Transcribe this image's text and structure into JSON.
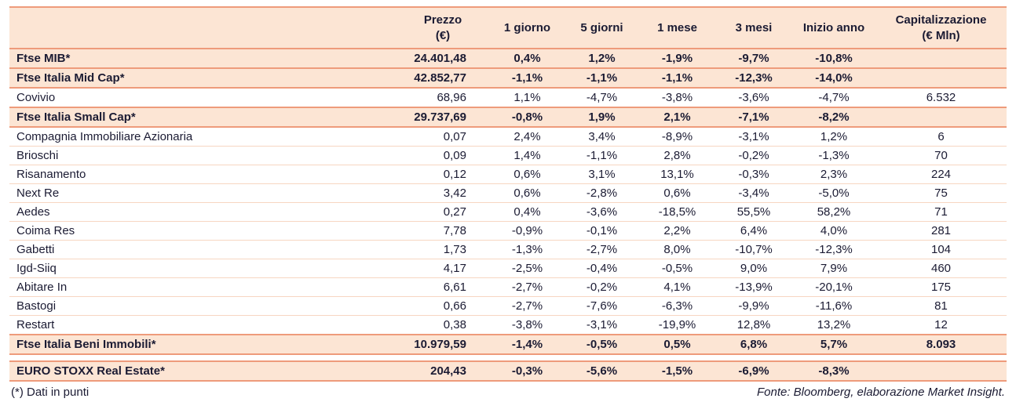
{
  "table": {
    "columns": [
      {
        "label": ""
      },
      {
        "label": "Prezzo\n(€)"
      },
      {
        "label": "1 giorno"
      },
      {
        "label": "5 giorni"
      },
      {
        "label": "1 mese"
      },
      {
        "label": "3 mesi"
      },
      {
        "label": "Inizio anno"
      },
      {
        "label": "Capitalizzazione\n(€ Mln)"
      }
    ],
    "rows": [
      {
        "label": "Ftse MIB*",
        "index": true,
        "values": [
          "24.401,48",
          "0,4%",
          "1,2%",
          "-1,9%",
          "-9,7%",
          "-10,8%",
          ""
        ]
      },
      {
        "label": "Ftse Italia Mid Cap*",
        "index": true,
        "values": [
          "42.852,77",
          "-1,1%",
          "-1,1%",
          "-1,1%",
          "-12,3%",
          "-14,0%",
          ""
        ]
      },
      {
        "label": "Covivio",
        "index": false,
        "values": [
          "68,96",
          "1,1%",
          "-4,7%",
          "-3,8%",
          "-3,6%",
          "-4,7%",
          "6.532"
        ]
      },
      {
        "label": "Ftse Italia Small Cap*",
        "index": true,
        "values": [
          "29.737,69",
          "-0,8%",
          "1,9%",
          "2,1%",
          "-7,1%",
          "-8,2%",
          ""
        ]
      },
      {
        "label": "Compagnia Immobiliare Azionaria",
        "index": false,
        "values": [
          "0,07",
          "2,4%",
          "3,4%",
          "-8,9%",
          "-3,1%",
          "1,2%",
          "6"
        ]
      },
      {
        "label": "Brioschi",
        "index": false,
        "values": [
          "0,09",
          "1,4%",
          "-1,1%",
          "2,8%",
          "-0,2%",
          "-1,3%",
          "70"
        ]
      },
      {
        "label": "Risanamento",
        "index": false,
        "values": [
          "0,12",
          "0,6%",
          "3,1%",
          "13,1%",
          "-0,3%",
          "2,3%",
          "224"
        ]
      },
      {
        "label": "Next Re",
        "index": false,
        "values": [
          "3,42",
          "0,6%",
          "-2,8%",
          "0,6%",
          "-3,4%",
          "-5,0%",
          "75"
        ]
      },
      {
        "label": "Aedes",
        "index": false,
        "values": [
          "0,27",
          "0,4%",
          "-3,6%",
          "-18,5%",
          "55,5%",
          "58,2%",
          "71"
        ]
      },
      {
        "label": "Coima Res",
        "index": false,
        "values": [
          "7,78",
          "-0,9%",
          "-0,1%",
          "2,2%",
          "6,4%",
          "4,0%",
          "281"
        ]
      },
      {
        "label": "Gabetti",
        "index": false,
        "values": [
          "1,73",
          "-1,3%",
          "-2,7%",
          "8,0%",
          "-10,7%",
          "-12,3%",
          "104"
        ]
      },
      {
        "label": "Igd-Siiq",
        "index": false,
        "values": [
          "4,17",
          "-2,5%",
          "-0,4%",
          "-0,5%",
          "9,0%",
          "7,9%",
          "460"
        ]
      },
      {
        "label": "Abitare In",
        "index": false,
        "values": [
          "6,61",
          "-2,7%",
          "-0,2%",
          "4,1%",
          "-13,9%",
          "-20,1%",
          "175"
        ]
      },
      {
        "label": "Bastogi",
        "index": false,
        "values": [
          "0,66",
          "-2,7%",
          "-7,6%",
          "-6,3%",
          "-9,9%",
          "-11,6%",
          "81"
        ]
      },
      {
        "label": "Restart",
        "index": false,
        "values": [
          "0,38",
          "-3,8%",
          "-3,1%",
          "-19,9%",
          "12,8%",
          "13,2%",
          "12"
        ]
      },
      {
        "label": "Ftse Italia Beni Immobili*",
        "index": true,
        "values": [
          "10.979,59",
          "-1,4%",
          "-0,5%",
          "0,5%",
          "6,8%",
          "5,7%",
          "8.093"
        ]
      }
    ],
    "euro_row": {
      "label": "EURO STOXX Real Estate*",
      "index": true,
      "values": [
        "204,43",
        "-0,3%",
        "-5,6%",
        "-1,5%",
        "-6,9%",
        "-8,3%",
        ""
      ]
    }
  },
  "footer": {
    "note": "(*) Dati in punti",
    "source": "Fonte: Bloomberg, elaborazione Market Insight."
  },
  "colors": {
    "header_bg": "#FCE5D4",
    "border_strong": "#EE9B7B",
    "border_light": "#F7D6C2",
    "text": "#1B1B33"
  }
}
